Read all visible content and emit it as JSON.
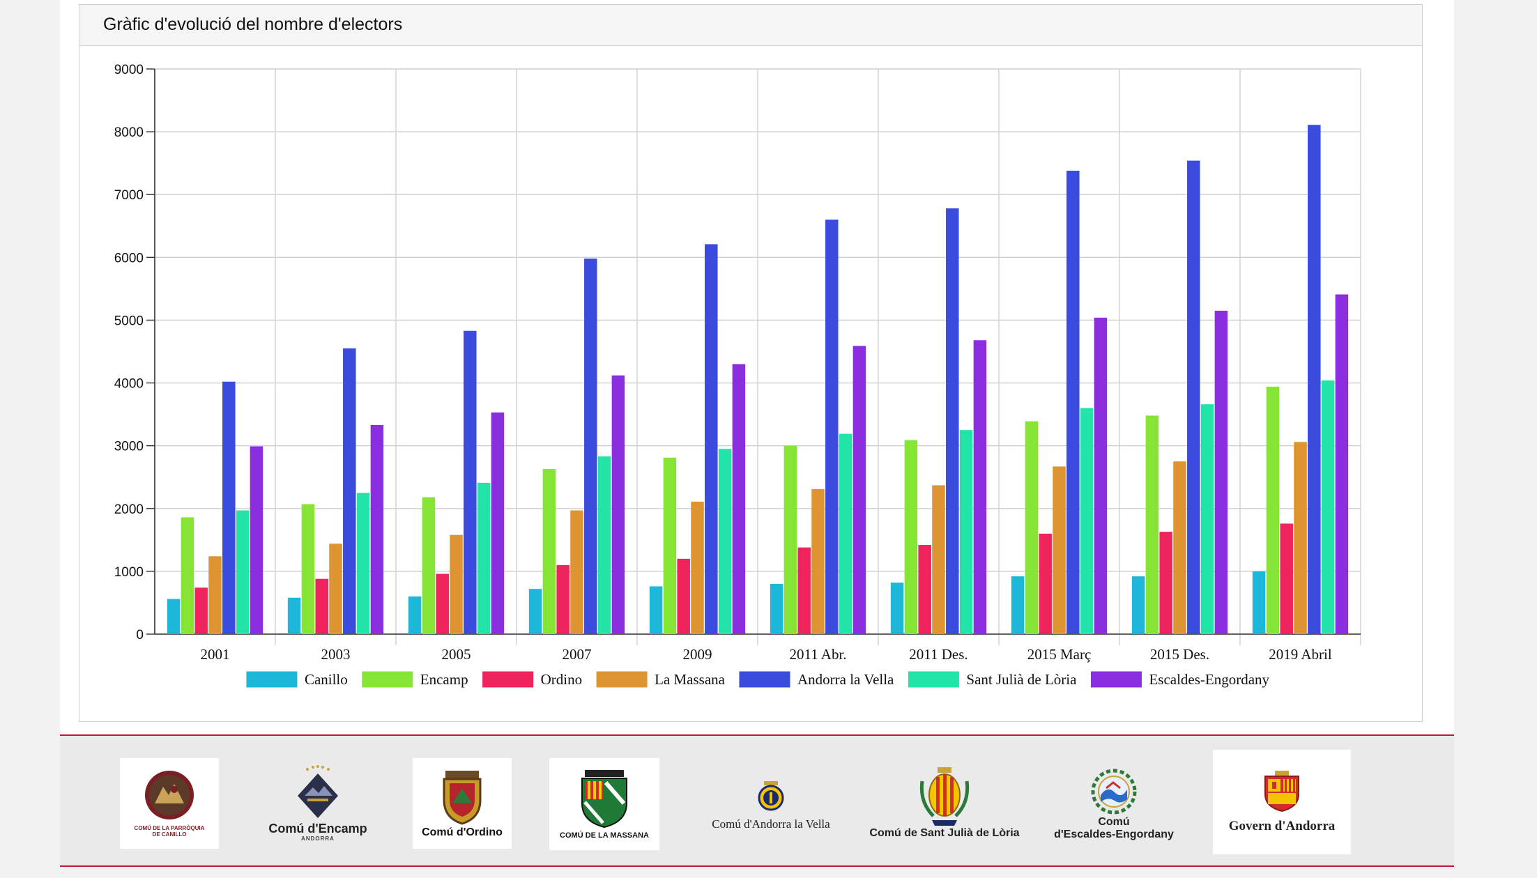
{
  "panel": {
    "title": "Gràfic d'evolució del nombre d'electors"
  },
  "chart_data": {
    "type": "bar",
    "title": "Gràfic d'evolució del nombre d'electors",
    "xlabel": "",
    "ylabel": "",
    "ylim": [
      0,
      9000
    ],
    "yticks": [
      0,
      1000,
      2000,
      3000,
      4000,
      5000,
      6000,
      7000,
      8000,
      9000
    ],
    "grid": true,
    "legend_position": "bottom",
    "categories": [
      "2001",
      "2003",
      "2005",
      "2007",
      "2009",
      "2011 Abr.",
      "2011 Des.",
      "2015 Març",
      "2015 Des.",
      "2019 Abril"
    ],
    "series": [
      {
        "name": "Canillo",
        "color": "#1cb7d9",
        "values": [
          560,
          580,
          600,
          720,
          760,
          800,
          820,
          920,
          920,
          1000
        ]
      },
      {
        "name": "Encamp",
        "color": "#86e534",
        "values": [
          1860,
          2070,
          2180,
          2630,
          2810,
          3000,
          3090,
          3390,
          3480,
          3940
        ]
      },
      {
        "name": "Ordino",
        "color": "#f0245c",
        "values": [
          740,
          880,
          960,
          1100,
          1200,
          1380,
          1420,
          1600,
          1630,
          1760
        ]
      },
      {
        "name": "La Massana",
        "color": "#de9430",
        "values": [
          1240,
          1440,
          1580,
          1970,
          2110,
          2310,
          2370,
          2670,
          2750,
          3060
        ]
      },
      {
        "name": "Andorra la Vella",
        "color": "#3a4bde",
        "values": [
          4020,
          4550,
          4830,
          5980,
          6210,
          6600,
          6780,
          7380,
          7540,
          8110
        ]
      },
      {
        "name": "Sant Julià de Lòria",
        "color": "#22e3a8",
        "values": [
          1970,
          2250,
          2410,
          2830,
          2950,
          3190,
          3250,
          3600,
          3660,
          4040
        ]
      },
      {
        "name": "Escaldes-Engordany",
        "color": "#8a2ee0",
        "values": [
          2990,
          3330,
          3530,
          4120,
          4300,
          4590,
          4680,
          5040,
          5150,
          5410
        ]
      }
    ]
  },
  "footer": {
    "logos": [
      {
        "icon": "canillo-emblem-icon",
        "caption_line1": "COMÚ DE LA PARRÒQUIA",
        "caption_line2": "DE CANILLO"
      },
      {
        "icon": "encamp-emblem-icon",
        "caption_line1": "Comú d'Encamp",
        "caption_line2": "ANDORRA"
      },
      {
        "icon": "ordino-emblem-icon",
        "caption_line1": "Comú d'Ordino"
      },
      {
        "icon": "la-massana-emblem-icon",
        "caption_line1": "COMÚ DE LA MASSANA"
      },
      {
        "icon": "andorra-la-vella-emblem-icon",
        "caption_line1": "Comú d'Andorra la Vella"
      },
      {
        "icon": "sant-julia-emblem-icon",
        "caption_line1": "Comú de Sant Julià de Lòria"
      },
      {
        "icon": "escaldes-emblem-icon",
        "caption_line1": "Comú",
        "caption_line2": "d'Escaldes-Engordany"
      },
      {
        "icon": "govern-emblem-icon",
        "caption_line1": "Govern d'Andorra"
      }
    ]
  }
}
